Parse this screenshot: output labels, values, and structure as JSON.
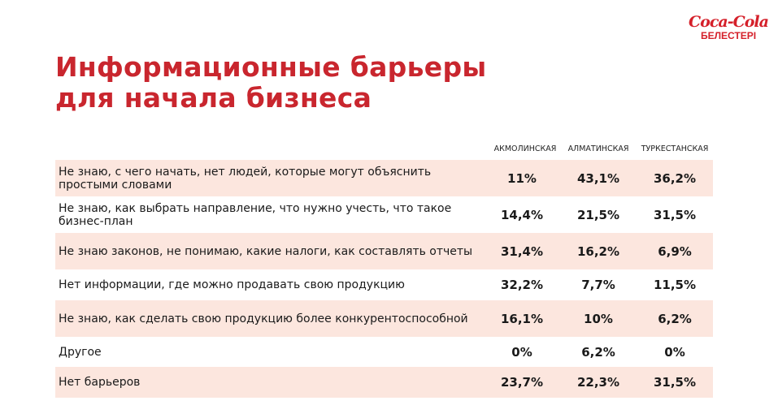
{
  "logo": {
    "brand": "Coca-Cola",
    "region": "БЕЛЕСТЕРІ"
  },
  "title": {
    "line1": "Информационные барьеры",
    "line2": "для начала бизнеса"
  },
  "columns": [
    "АКМОЛИНСКАЯ",
    "АЛМАТИНСКАЯ",
    "ТУРКЕСТАНСКАЯ"
  ],
  "rows": [
    {
      "label": "Не знаю, с чего начать, нет людей, которые могут объяснить простыми словами",
      "values": [
        "11%",
        "43,1%",
        "36,2%"
      ]
    },
    {
      "label": "Не знаю, как выбрать направление, что нужно учесть, что такое бизнес-план",
      "values": [
        "14,4%",
        "21,5%",
        "31,5%"
      ]
    },
    {
      "label": "Не знаю законов, не понимаю, какие налоги, как составлять отчеты",
      "values": [
        "31,4%",
        "16,2%",
        "6,9%"
      ]
    },
    {
      "label": "Нет информации, где можно продавать свою продукцию",
      "values": [
        "32,2%",
        "7,7%",
        "11,5%"
      ]
    },
    {
      "label": "Не знаю, как сделать свою продукцию более конкурентоспособной",
      "values": [
        "16,1%",
        "10%",
        "6,2%"
      ]
    },
    {
      "label": "Другое",
      "values": [
        "0%",
        "6,2%",
        "0%"
      ]
    },
    {
      "label": "Нет барьеров",
      "values": [
        "23,7%",
        "22,3%",
        "31,5%"
      ]
    }
  ]
}
